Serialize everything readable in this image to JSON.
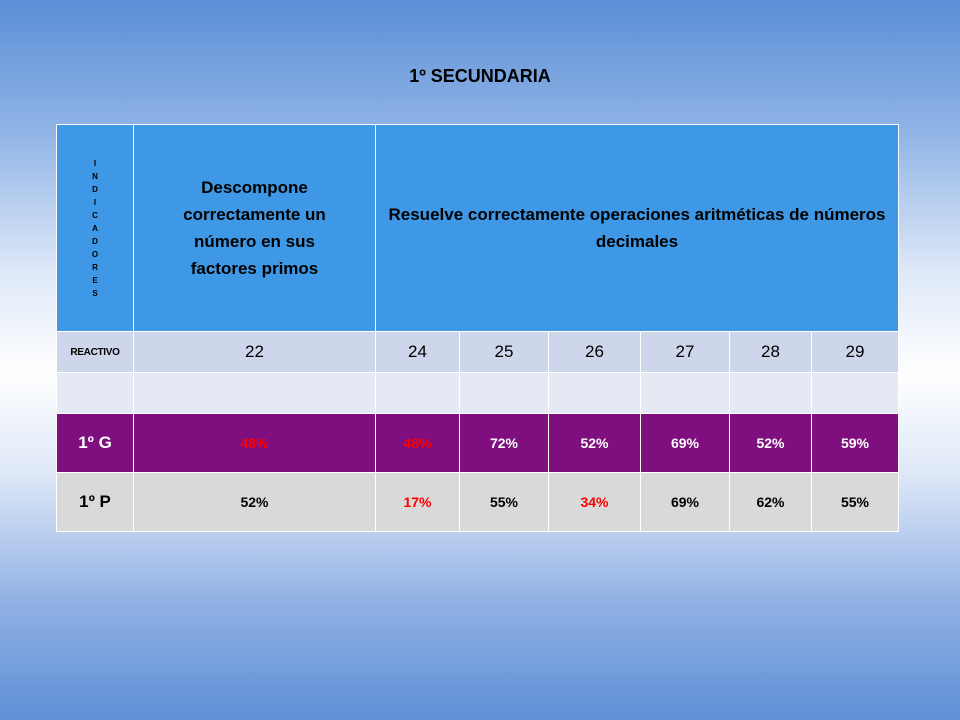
{
  "title": "1º SECUNDARIA",
  "table": {
    "indicadores_letters": [
      "I",
      "N",
      "D",
      "I",
      "C",
      "A",
      "D",
      "O",
      "R",
      "E",
      "S"
    ],
    "header_1": "Descompone correctamente un número en sus factores primos",
    "header_2": "Resuelve correctamente operaciones aritméticas de números decimales",
    "reactivo_label": "REACTIVO",
    "reactivos": [
      "22",
      "24",
      "25",
      "26",
      "27",
      "28",
      "29"
    ],
    "rows": [
      {
        "label": "1º G",
        "values": [
          "48%",
          "48%",
          "72%",
          "52%",
          "69%",
          "52%",
          "59%"
        ]
      },
      {
        "label": "1º P",
        "values": [
          "52%",
          "17%",
          "55%",
          "34%",
          "69%",
          "62%",
          "55%"
        ]
      }
    ]
  },
  "colors": {
    "header_bg": "#3e98e6",
    "reactivo_bg": "#cdd6ea",
    "group_g_bg": "#7f0f7e",
    "group_p_bg": "#d9d9d9",
    "highlight_red": "#ff0000"
  }
}
